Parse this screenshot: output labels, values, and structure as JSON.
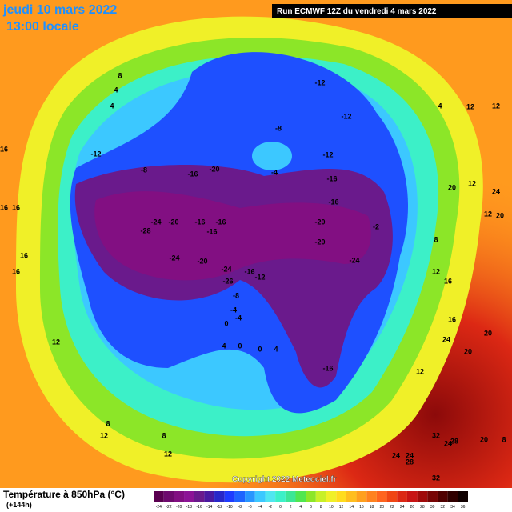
{
  "header": {
    "date": "jeudi 10 mars 2022",
    "time": "13:00 locale",
    "run": "Run ECMWF 12Z du vendredi 4 mars 2022"
  },
  "footer": {
    "title": "Température à 850hPa (°C)",
    "lead": "(+144h)",
    "copyright": "Copyright 2022 Meteociel.fr"
  },
  "colorbar": {
    "ticks": [
      -24,
      -22,
      -20,
      -18,
      -16,
      -14,
      -12,
      -10,
      -8,
      -6,
      -4,
      -2,
      0,
      2,
      4,
      6,
      8,
      10,
      12,
      14,
      16,
      18,
      20,
      22,
      24,
      26,
      28,
      30,
      32,
      34,
      36
    ],
    "colors": [
      "#5a0050",
      "#6e0a6e",
      "#820f82",
      "#8c1496",
      "#6a1a8c",
      "#4a1aa0",
      "#2828c8",
      "#1e3cff",
      "#1e64ff",
      "#2896ff",
      "#3cc8ff",
      "#50e6f0",
      "#3cf0c8",
      "#3ce696",
      "#50e650",
      "#8ce628",
      "#c8f028",
      "#f0f028",
      "#ffdc1e",
      "#ffbe1e",
      "#ffa01e",
      "#ff821e",
      "#ff641e",
      "#f04614",
      "#dc2814",
      "#c81414",
      "#a00a0a",
      "#780505",
      "#500000",
      "#300000",
      "#100000"
    ]
  },
  "contour_labels": [
    8,
    4,
    4,
    16,
    -12,
    -8,
    -16,
    -20,
    -8,
    -4,
    -12,
    -12,
    -12,
    -16,
    -16,
    -20,
    -20,
    -24,
    -2,
    -24,
    -28,
    -20,
    -16,
    -16,
    -16,
    -24,
    -20,
    -24,
    -16,
    -12,
    -26,
    -8,
    -4,
    -4,
    0,
    4,
    0,
    0,
    4,
    -16,
    12,
    24,
    20,
    20,
    16,
    12,
    8,
    16,
    12,
    24,
    12,
    20,
    20,
    12,
    12,
    4,
    16,
    16,
    12,
    8,
    12,
    12,
    8,
    32,
    24,
    28,
    20,
    24,
    24,
    28,
    32,
    8,
    16,
    16
  ]
}
